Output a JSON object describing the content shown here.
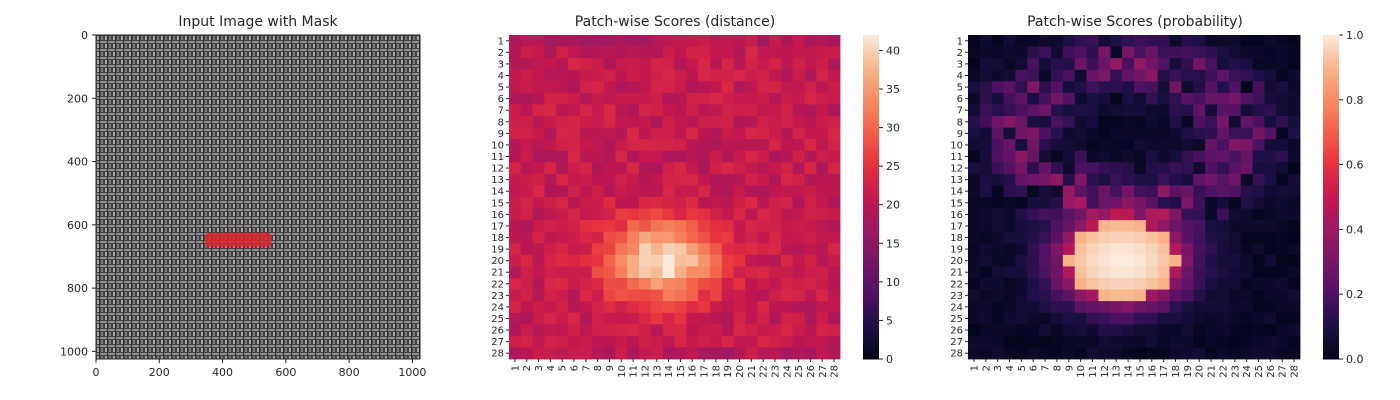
{
  "colors": {
    "mask": "#d9242b",
    "fabric_dark": "#3b3b3b",
    "fabric_light": "#9a9a9a",
    "cmap": "rocket"
  },
  "chart_data": [
    {
      "type": "image",
      "title": "Input Image with Mask",
      "xlim": [
        0,
        1024
      ],
      "ylim": [
        1024,
        0
      ],
      "xticks": [
        0,
        200,
        400,
        600,
        800,
        1000
      ],
      "yticks": [
        0,
        200,
        400,
        600,
        800,
        1000
      ],
      "xtick_labels": [
        "0",
        "200",
        "400",
        "600",
        "800",
        "1000"
      ],
      "ytick_labels": [
        "0",
        "200",
        "400",
        "600",
        "800",
        "1000"
      ],
      "mask": {
        "x_range": [
          345,
          555
        ],
        "y_range": [
          625,
          670
        ]
      }
    },
    {
      "type": "heatmap",
      "title": "Patch-wise Scores (distance)",
      "rows": 28,
      "cols": 28,
      "row_labels": [
        "1",
        "2",
        "3",
        "4",
        "5",
        "6",
        "7",
        "8",
        "9",
        "10",
        "11",
        "12",
        "13",
        "14",
        "15",
        "16",
        "17",
        "18",
        "19",
        "20",
        "21",
        "22",
        "23",
        "24",
        "25",
        "26",
        "27",
        "28"
      ],
      "col_labels": [
        "1",
        "2",
        "3",
        "4",
        "5",
        "6",
        "7",
        "8",
        "9",
        "10",
        "11",
        "12",
        "13",
        "14",
        "15",
        "16",
        "17",
        "18",
        "19",
        "20",
        "21",
        "22",
        "23",
        "24",
        "25",
        "26",
        "27",
        "28"
      ],
      "colorbar": {
        "vmin": 0,
        "vmax": 42,
        "ticks": [
          0,
          5,
          10,
          15,
          20,
          25,
          30,
          35,
          40
        ],
        "tick_labels": [
          "0",
          "5",
          "10",
          "15",
          "20",
          "25",
          "30",
          "35",
          "40"
        ]
      },
      "background": 21,
      "hotspot": {
        "center_row": 20,
        "center_col": 13.5,
        "peak": 42,
        "radius_rows": 3.5,
        "radius_cols": 4.8
      }
    },
    {
      "type": "heatmap",
      "title": "Patch-wise Scores (probability)",
      "rows": 28,
      "cols": 28,
      "row_labels": [
        "1",
        "2",
        "3",
        "4",
        "5",
        "6",
        "7",
        "8",
        "9",
        "10",
        "11",
        "12",
        "13",
        "14",
        "15",
        "16",
        "17",
        "18",
        "19",
        "20",
        "21",
        "22",
        "23",
        "24",
        "25",
        "26",
        "27",
        "28"
      ],
      "col_labels": [
        "1",
        "2",
        "3",
        "4",
        "5",
        "6",
        "7",
        "8",
        "9",
        "10",
        "11",
        "12",
        "13",
        "14",
        "15",
        "16",
        "17",
        "18",
        "19",
        "20",
        "21",
        "22",
        "23",
        "24",
        "25",
        "26",
        "27",
        "28"
      ],
      "colorbar": {
        "vmin": 0.0,
        "vmax": 1.0,
        "ticks": [
          0.0,
          0.2,
          0.4,
          0.6,
          0.8,
          1.0
        ],
        "tick_labels": [
          "0.0",
          "0.2",
          "0.4",
          "0.6",
          "0.8",
          "1.0"
        ]
      },
      "background": 0.03,
      "hotspot": {
        "center_row": 20,
        "center_col": 13.5,
        "peak": 1.0,
        "radius_rows": 3.8,
        "radius_cols": 5.2
      }
    }
  ]
}
